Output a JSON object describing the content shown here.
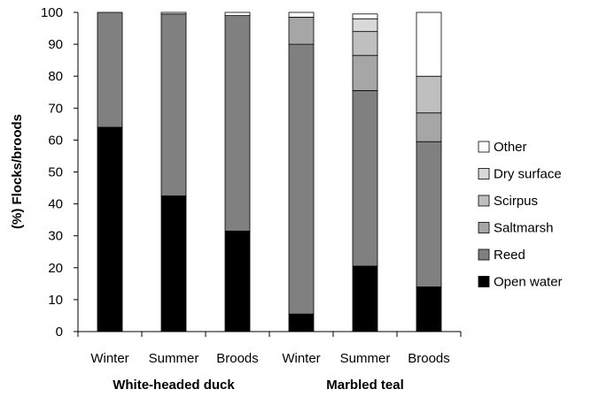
{
  "chart_data": {
    "type": "bar",
    "stacked": true,
    "ylabel": "(%) Flocks/broods",
    "xlabel": "",
    "ylim": [
      0,
      100
    ],
    "yticks": [
      0,
      10,
      20,
      30,
      40,
      50,
      60,
      70,
      80,
      90,
      100
    ],
    "grid": false,
    "legend_position": "right",
    "categories": [
      "Winter",
      "Summer",
      "Broods",
      "Winter",
      "Summer",
      "Broods"
    ],
    "groups": [
      {
        "label": "White-headed duck",
        "categories": [
          0,
          1,
          2
        ]
      },
      {
        "label": "Marbled teal",
        "categories": [
          3,
          4,
          5
        ]
      }
    ],
    "series": [
      {
        "name": "Open water",
        "color": "#000000",
        "values": [
          64,
          42.5,
          31.5,
          5.5,
          20.5,
          14
        ]
      },
      {
        "name": "Reed",
        "color": "#808080",
        "values": [
          36,
          57,
          67.5,
          84.5,
          55,
          45.5
        ]
      },
      {
        "name": "Saltmarsh",
        "color": "#a6a6a6",
        "values": [
          0,
          0,
          0,
          8.5,
          11,
          9
        ]
      },
      {
        "name": "Scirpus",
        "color": "#bfbfbf",
        "values": [
          0,
          0,
          0,
          0,
          7.5,
          11.5
        ]
      },
      {
        "name": "Dry surface",
        "color": "#d9d9d9",
        "values": [
          0,
          0,
          0,
          0,
          4,
          0
        ]
      },
      {
        "name": "Other",
        "color": "#ffffff",
        "values": [
          0,
          0.5,
          1,
          1.5,
          1.5,
          20
        ]
      }
    ]
  }
}
